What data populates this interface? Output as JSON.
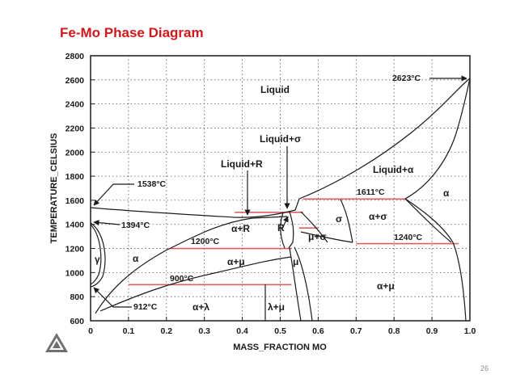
{
  "title": "Fe-Mo Phase Diagram",
  "slide_number": "26",
  "colors": {
    "title": "#d0191d",
    "tie_lines": "#e06060",
    "curves": "#1a1a1a"
  },
  "chart_data": {
    "type": "phase-diagram",
    "xlabel": "MASS_FRACTION MO",
    "ylabel": "TEMPERATURE_CELSIUS",
    "xlim": [
      0,
      1.0
    ],
    "ylim": [
      600,
      2800
    ],
    "x_ticks": [
      "0",
      "0.1",
      "0.2",
      "0.3",
      "0.4",
      "0.5",
      "0.6",
      "0.7",
      "0.8",
      "0.9",
      "1.0"
    ],
    "y_ticks": [
      "600",
      "800",
      "1000",
      "1200",
      "1400",
      "1600",
      "1800",
      "2000",
      "2200",
      "2400",
      "2600",
      "2800"
    ],
    "grid": "dotted",
    "regions": [
      "Liquid",
      "Liquid+σ",
      "Liquid+R",
      "Liquid+α",
      "α",
      "γ",
      "α+R",
      "R",
      "σ",
      "μ+σ",
      "α+σ",
      "α+μ",
      "α+μ",
      "α+λ",
      "λ+μ",
      "μ",
      "α"
    ],
    "temperature_labels": [
      "2623°C",
      "1538°C",
      "1394°C",
      "1611°C",
      "1200°C",
      "1240°C",
      "900°C",
      "912°C"
    ],
    "tie_lines": [
      {
        "temperature": 1611,
        "x": [
          0.56,
          0.83
        ]
      },
      {
        "temperature": 1500,
        "x": [
          0.38,
          0.56
        ]
      },
      {
        "temperature": 1370,
        "x": [
          0.55,
          0.6
        ]
      },
      {
        "temperature": 1240,
        "x": [
          0.7,
          0.97
        ]
      },
      {
        "temperature": 1200,
        "x": [
          0.21,
          0.53
        ]
      },
      {
        "temperature": 900,
        "x": [
          0.1,
          0.53
        ]
      }
    ],
    "boundaries": {
      "liquidus": [
        [
          0,
          1538
        ],
        [
          0.1,
          1505
        ],
        [
          0.25,
          1470
        ],
        [
          0.38,
          1455
        ],
        [
          0.46,
          1478
        ],
        [
          0.52,
          1500
        ],
        [
          0.56,
          1611
        ],
        [
          0.65,
          1850
        ],
        [
          0.78,
          2150
        ],
        [
          0.9,
          2380
        ],
        [
          1.0,
          2623
        ]
      ],
      "alpha_liquidus_solidus": [
        [
          0.83,
          1611
        ],
        [
          0.9,
          1800
        ],
        [
          0.96,
          2100
        ],
        [
          1.0,
          2623
        ]
      ],
      "alpha_solvus_left": [
        [
          0.03,
          800
        ],
        [
          0.05,
          1050
        ],
        [
          0.09,
          1350
        ],
        [
          0.22,
          1470
        ],
        [
          0.36,
          1458
        ]
      ],
      "alpha_solvus_mo": [
        [
          0.83,
          1611
        ],
        [
          0.92,
          1300
        ],
        [
          0.97,
          1240
        ],
        [
          0.98,
          1050
        ],
        [
          0.99,
          800
        ],
        [
          0.995,
          600
        ]
      ],
      "gamma_loop": [
        [
          0,
          1394
        ],
        [
          0.02,
          1300
        ],
        [
          0.03,
          1150
        ],
        [
          0.02,
          1000
        ],
        [
          0,
          912
        ]
      ],
      "gamma_loop_outer": [
        [
          0,
          1394
        ],
        [
          0.04,
          1330
        ],
        [
          0.05,
          1150
        ],
        [
          0.04,
          980
        ],
        [
          0,
          912
        ]
      ]
    },
    "max_temperature_point": {
      "x": 1.0,
      "temperature": 2623
    }
  }
}
